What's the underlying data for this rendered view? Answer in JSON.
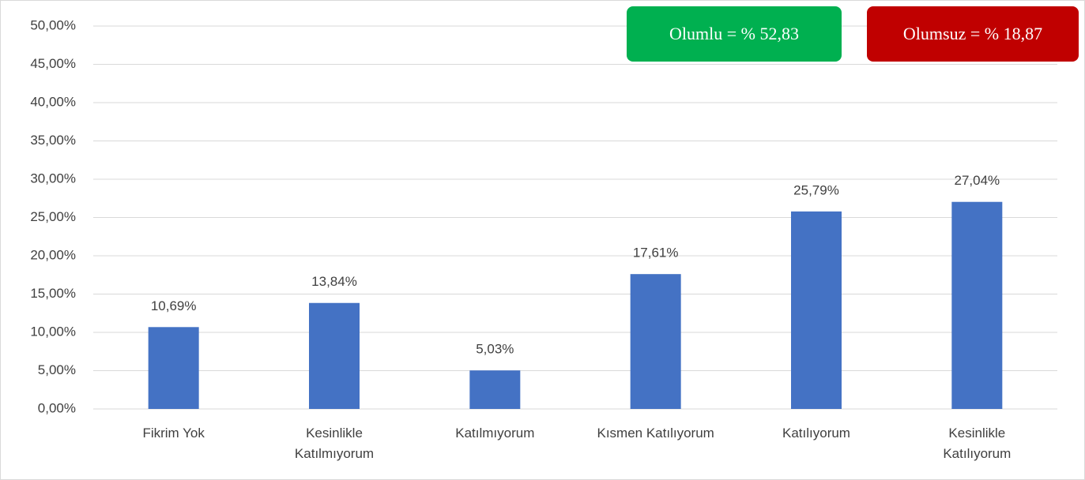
{
  "chart_data": {
    "type": "bar",
    "categories": [
      "Fikrim Yok",
      "Kesinlikle\nKatılmıyorum",
      "Katılmıyorum",
      "Kısmen Katılıyorum",
      "Katılıyorum",
      "Kesinlikle\nKatılıyorum"
    ],
    "values": [
      10.69,
      13.84,
      5.03,
      17.61,
      25.79,
      27.04
    ],
    "value_labels": [
      "10,69%",
      "13,84%",
      "5,03%",
      "17,61%",
      "25,79%",
      "27,04%"
    ],
    "color": "#4472c4",
    "ylim": [
      0,
      50
    ],
    "yticks": [
      {
        "value": 0,
        "label": "0,00%"
      },
      {
        "value": 5,
        "label": "5,00%"
      },
      {
        "value": 10,
        "label": "10,00%"
      },
      {
        "value": 15,
        "label": "15,00%"
      },
      {
        "value": 20,
        "label": "20,00%"
      },
      {
        "value": 25,
        "label": "25,00%"
      },
      {
        "value": 30,
        "label": "30,00%"
      },
      {
        "value": 35,
        "label": "35,00%"
      },
      {
        "value": 40,
        "label": "40,00%"
      },
      {
        "value": 45,
        "label": "45,00%"
      },
      {
        "value": 50,
        "label": "50,00%"
      }
    ],
    "grid": true,
    "annotations": [
      {
        "text": "Olumlu = % 52,83",
        "color": "#00b050"
      },
      {
        "text": "Olumsuz = % 18,87",
        "color": "#c00000"
      }
    ]
  }
}
